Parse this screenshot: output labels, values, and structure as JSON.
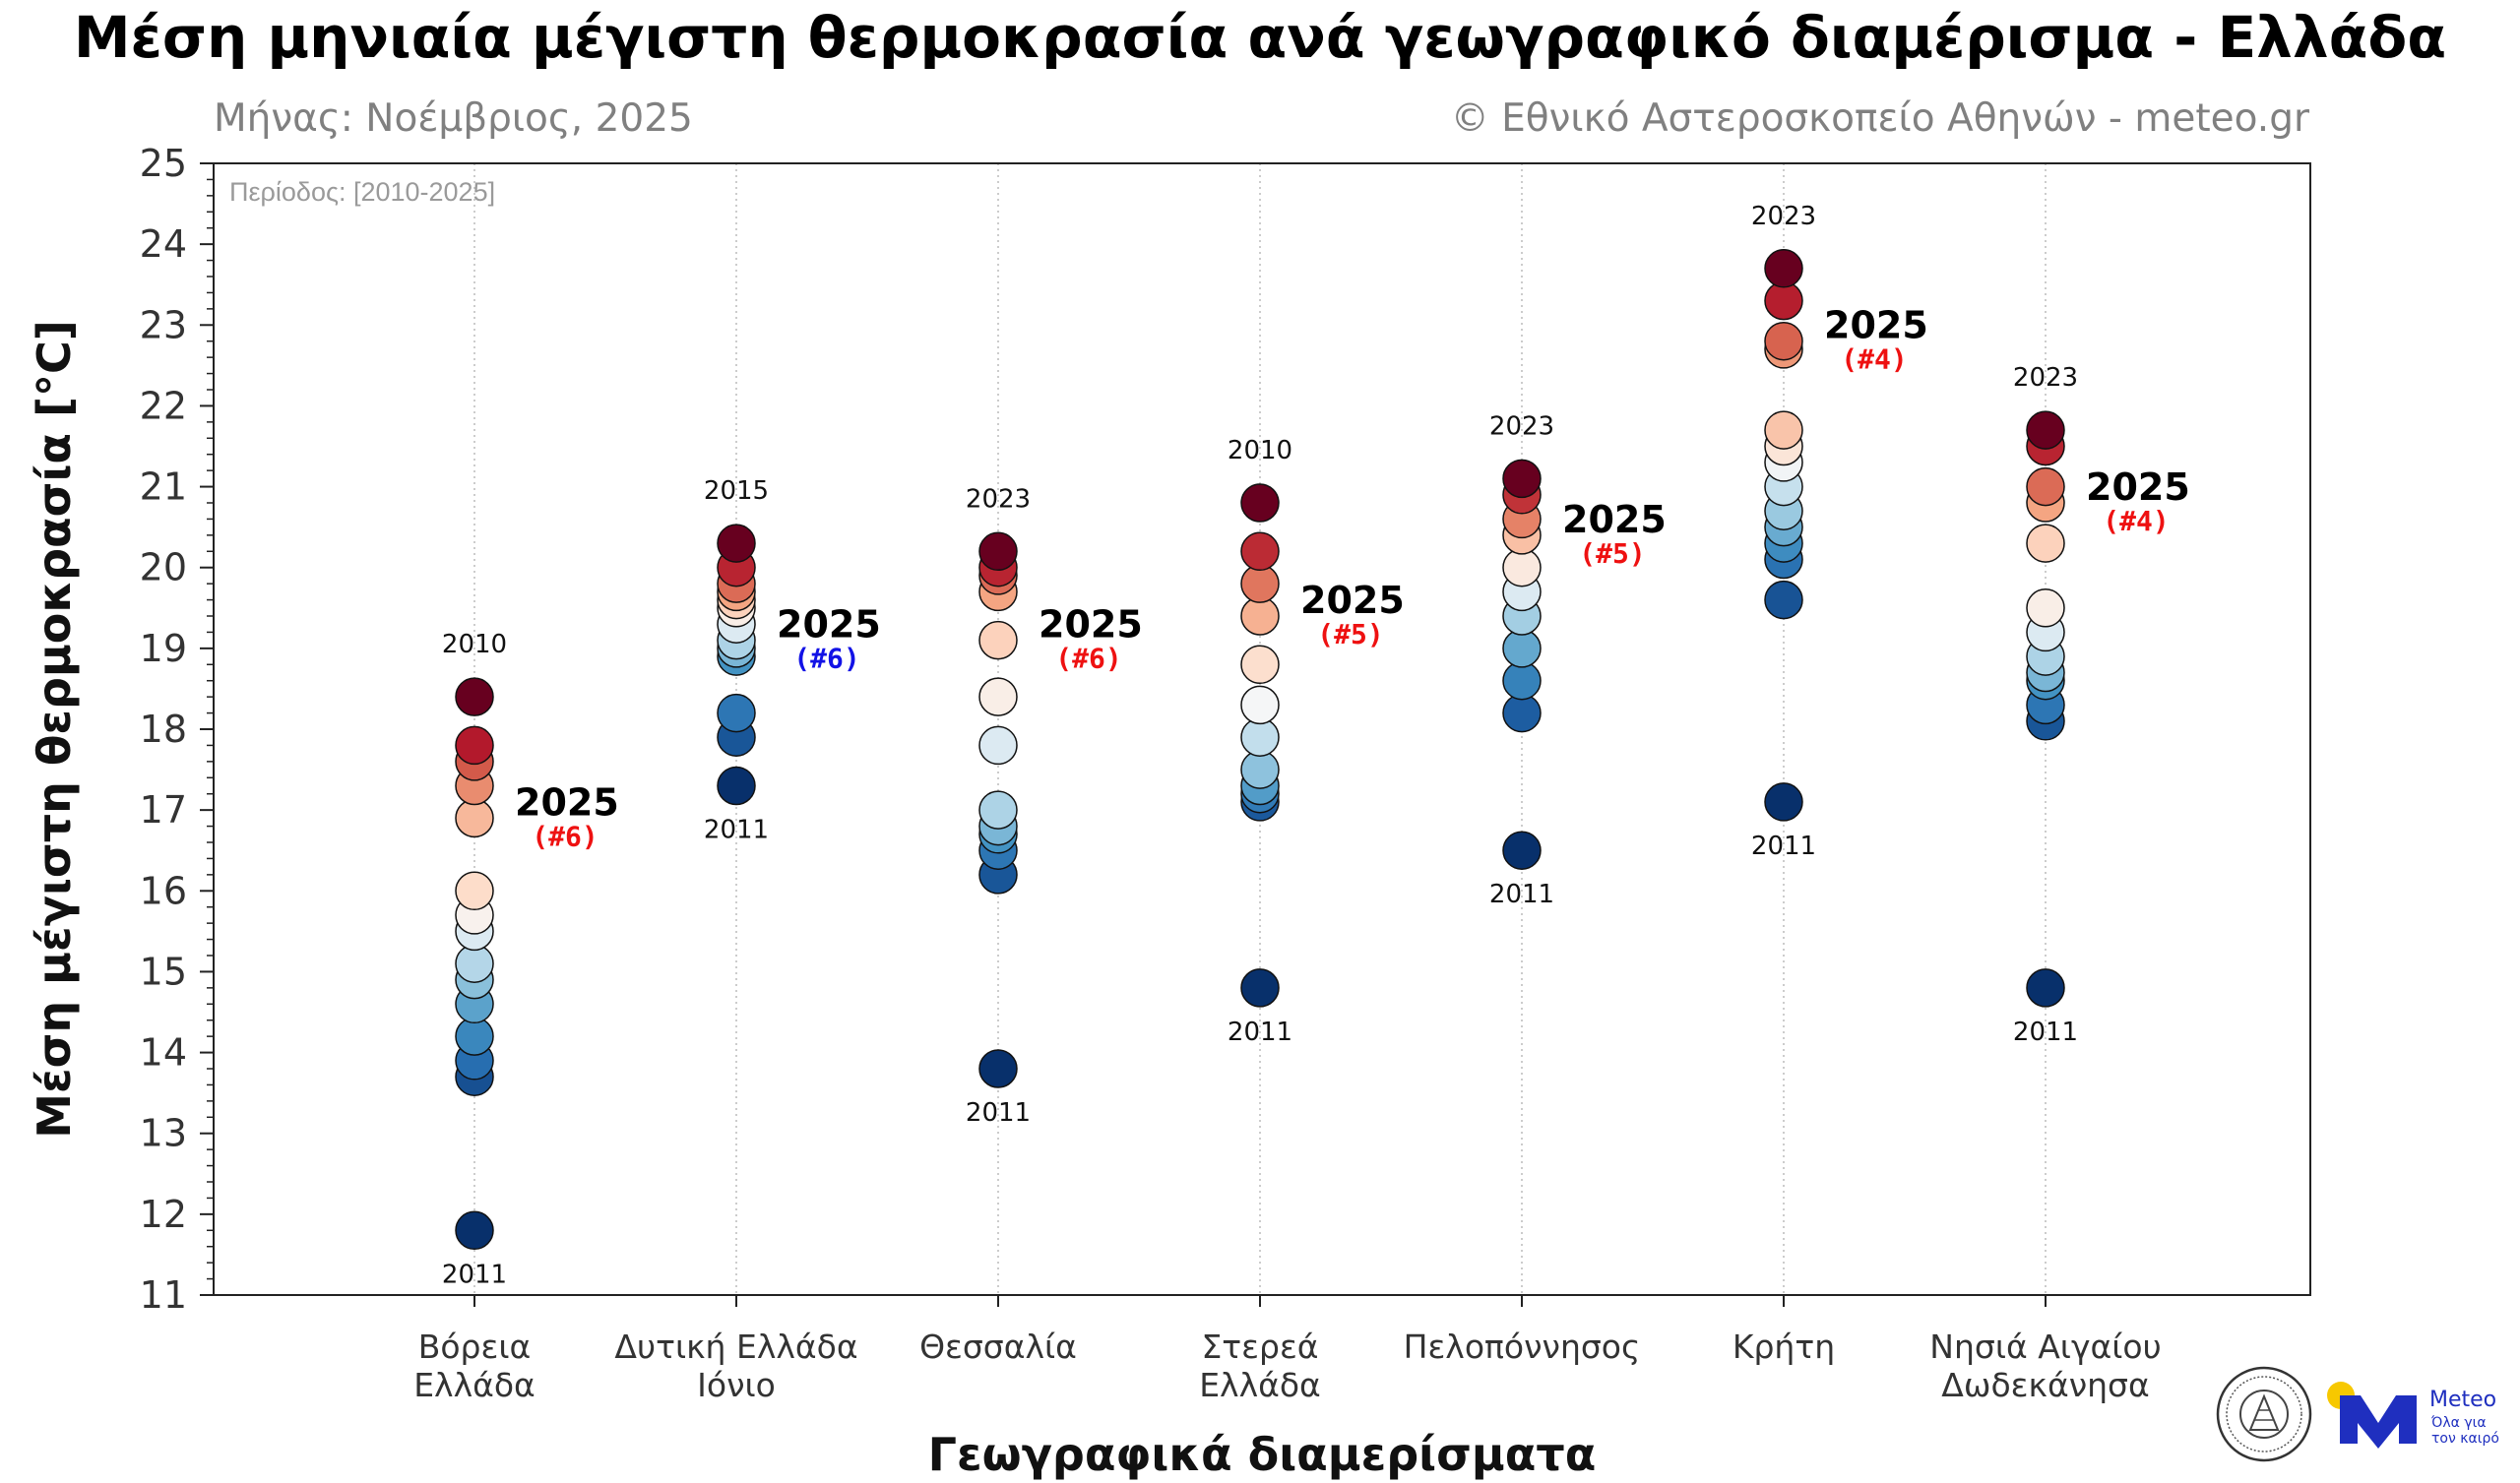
{
  "title": "Μέση μηνιαία μέγιστη θερμοκρασία ανά γεωγραφικό διαμέρισμα - Ελλάδα",
  "subtitle_left": "Μήνας: Νοέμβριος, 2025",
  "subtitle_right": "© Εθνικό Αστεροσκοπείο Αθηνών - meteo.gr",
  "period_note": "Περίοδος: [2010-2025]",
  "logo": {
    "name": "Meteo",
    "tagline_1": "Όλα για",
    "tagline_2": "τον καιρό",
    "seal_icon": "noa-seal-icon"
  },
  "colors": {
    "accent_current": "#e8101a",
    "rank_red": "#ee1111",
    "rank_blue": "#1212e6"
  },
  "chart_data": {
    "type": "scatter",
    "xlabel": "Γεωγραφικά διαμερίσματα",
    "ylabel": "Μέση μέγιστη θερμοκρασία [°C]",
    "ylim": [
      11,
      25
    ],
    "yticks": [
      11,
      12,
      13,
      14,
      15,
      16,
      17,
      18,
      19,
      20,
      21,
      22,
      23,
      24,
      25
    ],
    "grid": "vertical dotted at categories",
    "current_year": "2025",
    "categories": [
      {
        "label_lines": [
          "Βόρεια",
          "Ελλάδα"
        ],
        "values": [
          18.4,
          17.8,
          17.6,
          17.3,
          16.9,
          16.0,
          15.7,
          15.5,
          15.1,
          14.9,
          14.6,
          14.2,
          13.9,
          13.7,
          11.8
        ],
        "max": {
          "value": 18.4,
          "year": "2010"
        },
        "min": {
          "value": 11.8,
          "year": "2011"
        },
        "current": {
          "value": 16.9,
          "rank": "(#6)",
          "rank_color": "red"
        }
      },
      {
        "label_lines": [
          "Δυτική Ελλάδα",
          "Ιόνιο"
        ],
        "values": [
          20.3,
          20.0,
          19.8,
          19.7,
          19.6,
          19.5,
          19.3,
          19.1,
          19.0,
          18.9,
          18.2,
          17.9,
          17.3
        ],
        "max": {
          "value": 20.3,
          "year": "2015"
        },
        "min": {
          "value": 17.3,
          "year": "2011"
        },
        "current": {
          "value": 19.1,
          "rank": "(#6)",
          "rank_color": "blue"
        }
      },
      {
        "label_lines": [
          "Θεσσαλία"
        ],
        "values": [
          20.2,
          20.0,
          19.9,
          19.7,
          19.1,
          18.4,
          17.8,
          17.0,
          16.8,
          16.7,
          16.5,
          16.2,
          13.8
        ],
        "max": {
          "value": 20.2,
          "year": "2023"
        },
        "min": {
          "value": 13.8,
          "year": "2011"
        },
        "current": {
          "value": 19.1,
          "rank": "(#6)",
          "rank_color": "red"
        }
      },
      {
        "label_lines": [
          "Στερεά",
          "Ελλάδα"
        ],
        "values": [
          20.8,
          20.2,
          19.8,
          19.4,
          18.8,
          18.3,
          17.9,
          17.5,
          17.3,
          17.2,
          17.1,
          14.8
        ],
        "max": {
          "value": 20.8,
          "year": "2010"
        },
        "min": {
          "value": 14.8,
          "year": "2011"
        },
        "current": {
          "value": 19.4,
          "rank": "(#5)",
          "rank_color": "red"
        }
      },
      {
        "label_lines": [
          "Πελοπόννησος"
        ],
        "values": [
          21.1,
          20.9,
          20.6,
          20.4,
          20.0,
          19.7,
          19.4,
          19.0,
          18.6,
          18.2,
          16.5
        ],
        "max": {
          "value": 21.1,
          "year": "2023"
        },
        "min": {
          "value": 16.5,
          "year": "2011"
        },
        "current": {
          "value": 20.4,
          "rank": "(#5)",
          "rank_color": "red"
        }
      },
      {
        "label_lines": [
          "Κρήτη"
        ],
        "values": [
          23.7,
          23.3,
          22.8,
          22.7,
          21.7,
          21.5,
          21.3,
          21.0,
          20.7,
          20.5,
          20.3,
          20.1,
          19.6,
          17.1
        ],
        "max": {
          "value": 23.7,
          "year": "2023"
        },
        "min": {
          "value": 17.1,
          "year": "2011"
        },
        "current": {
          "value": 22.8,
          "rank": "(#4)",
          "rank_color": "red"
        }
      },
      {
        "label_lines": [
          "Νησιά Αιγαίου",
          "Δωδεκάνησα"
        ],
        "values": [
          21.7,
          21.5,
          21.0,
          20.8,
          20.3,
          19.5,
          19.2,
          18.9,
          18.7,
          18.6,
          18.3,
          18.1,
          14.8
        ],
        "max": {
          "value": 21.7,
          "year": "2023"
        },
        "min": {
          "value": 14.8,
          "year": "2011"
        },
        "current": {
          "value": 20.8,
          "rank": "(#4)",
          "rank_color": "red"
        }
      }
    ]
  }
}
